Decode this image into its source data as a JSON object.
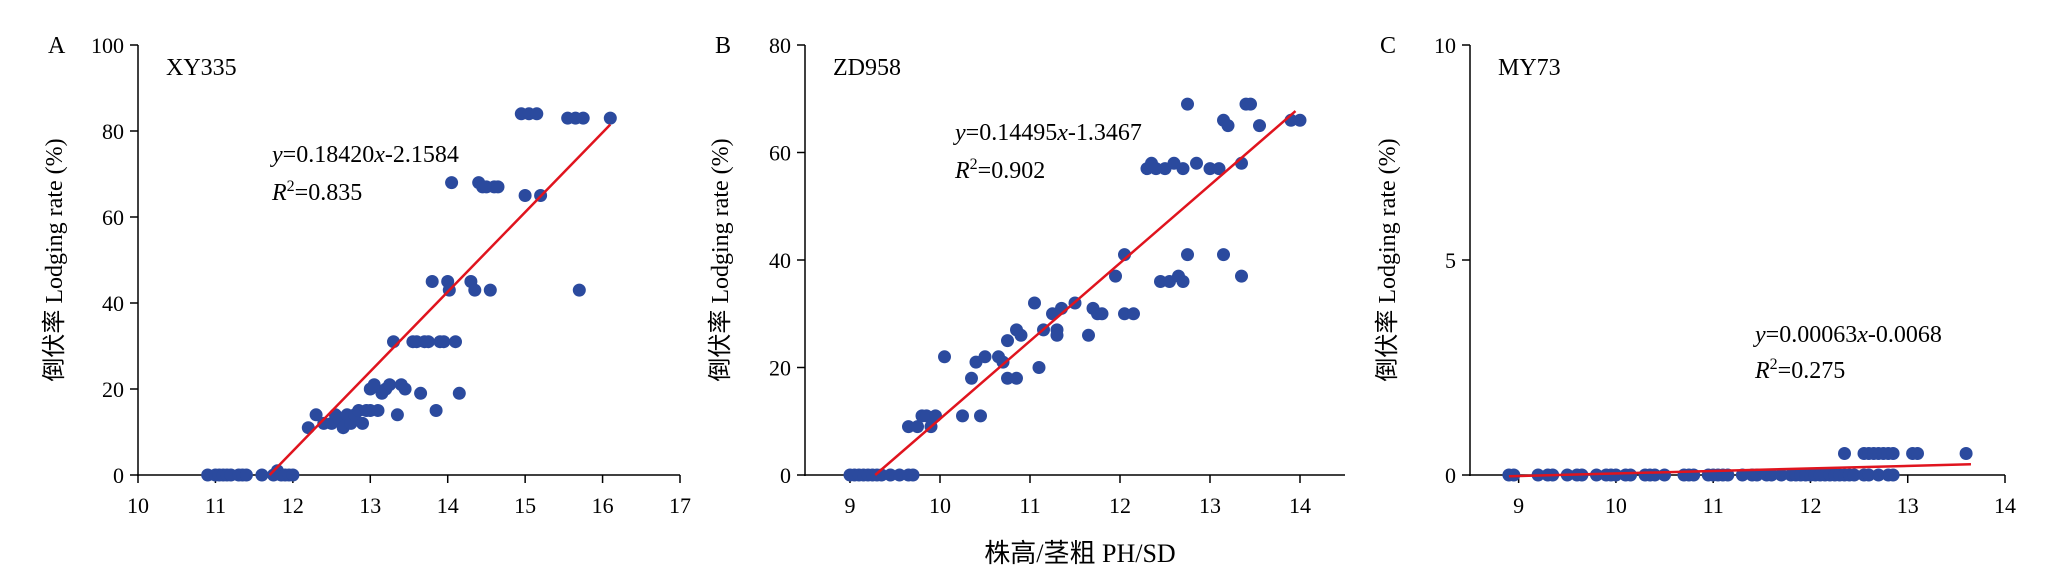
{
  "figure": {
    "common_xlabel": "株高/茎粗 PH/SD"
  },
  "chart_data": [
    {
      "type": "scatter",
      "panel_label": "A",
      "series_name": "XY335",
      "xlabel": "株高/茎粗 PH/SD",
      "ylabel": "倒伏率 Lodging rate (%)",
      "xlim": [
        10,
        17
      ],
      "ylim": [
        0,
        100
      ],
      "xticks": [
        "10",
        "11",
        "12",
        "13",
        "14",
        "15",
        "16",
        "17"
      ],
      "yticks": [
        "0",
        "20",
        "40",
        "60",
        "80",
        "100"
      ],
      "equation": "y=0.18420x-2.1584",
      "r2": "R2=0.835",
      "eq_y": "y",
      "eq_rest1": "=0.18420",
      "eq_x": "x",
      "eq_rest2": "-2.1584",
      "r2_R": "R",
      "r2_sup": "2",
      "r2_val": "=0.835",
      "fit_line": {
        "x": [
          11.7,
          16.1
        ],
        "y": [
          0,
          81.5
        ]
      },
      "points": [
        [
          10.9,
          0
        ],
        [
          11.0,
          0
        ],
        [
          11.05,
          0
        ],
        [
          11.1,
          0
        ],
        [
          11.15,
          0
        ],
        [
          11.2,
          0
        ],
        [
          11.3,
          0
        ],
        [
          11.35,
          0
        ],
        [
          11.4,
          0
        ],
        [
          11.6,
          0
        ],
        [
          11.75,
          0
        ],
        [
          11.8,
          1
        ],
        [
          11.85,
          0
        ],
        [
          11.9,
          0
        ],
        [
          11.95,
          0
        ],
        [
          12.0,
          0
        ],
        [
          12.2,
          11
        ],
        [
          12.3,
          14
        ],
        [
          12.4,
          12
        ],
        [
          12.5,
          12
        ],
        [
          12.55,
          14
        ],
        [
          12.6,
          13
        ],
        [
          12.65,
          11
        ],
        [
          12.7,
          14
        ],
        [
          12.75,
          12
        ],
        [
          12.8,
          14
        ],
        [
          12.85,
          15
        ],
        [
          12.9,
          12
        ],
        [
          12.95,
          15
        ],
        [
          13.0,
          15
        ],
        [
          13.0,
          20
        ],
        [
          13.05,
          21
        ],
        [
          13.1,
          15
        ],
        [
          13.15,
          19
        ],
        [
          13.2,
          20
        ],
        [
          13.25,
          21
        ],
        [
          13.3,
          31
        ],
        [
          13.35,
          14
        ],
        [
          13.4,
          21
        ],
        [
          13.45,
          20
        ],
        [
          13.55,
          31
        ],
        [
          13.6,
          31
        ],
        [
          13.65,
          19
        ],
        [
          13.7,
          31
        ],
        [
          13.75,
          31
        ],
        [
          13.8,
          45
        ],
        [
          13.85,
          15
        ],
        [
          13.9,
          31
        ],
        [
          13.95,
          31
        ],
        [
          14.0,
          45
        ],
        [
          14.02,
          43
        ],
        [
          14.05,
          68
        ],
        [
          14.1,
          31
        ],
        [
          14.15,
          19
        ],
        [
          14.3,
          45
        ],
        [
          14.35,
          43
        ],
        [
          14.4,
          68
        ],
        [
          14.45,
          67
        ],
        [
          14.5,
          67
        ],
        [
          14.55,
          43
        ],
        [
          14.6,
          67
        ],
        [
          14.65,
          67
        ],
        [
          14.95,
          84
        ],
        [
          15.0,
          65
        ],
        [
          15.05,
          84
        ],
        [
          15.15,
          84
        ],
        [
          15.2,
          65
        ],
        [
          15.55,
          83
        ],
        [
          15.65,
          83
        ],
        [
          15.7,
          43
        ],
        [
          15.75,
          83
        ],
        [
          16.1,
          83
        ]
      ]
    },
    {
      "type": "scatter",
      "panel_label": "B",
      "series_name": "ZD958",
      "xlabel": "株高/茎粗 PH/SD",
      "ylabel": "倒伏率 Lodging rate (%)",
      "xlim": [
        8.5,
        14.5
      ],
      "ylim": [
        0,
        80
      ],
      "xticks": [
        "9",
        "10",
        "11",
        "12",
        "13",
        "14"
      ],
      "yticks": [
        "0",
        "20",
        "40",
        "60",
        "80"
      ],
      "equation": "y=0.14495x-1.3467",
      "r2": "R2=0.902",
      "eq_y": "y",
      "eq_rest1": "=0.14495",
      "eq_x": "x",
      "eq_rest2": "-1.3467",
      "r2_R": "R",
      "r2_sup": "2",
      "r2_val": "=0.902",
      "fit_line": {
        "x": [
          9.28,
          13.95
        ],
        "y": [
          0,
          67.7
        ]
      },
      "points": [
        [
          9.0,
          0
        ],
        [
          9.05,
          0
        ],
        [
          9.1,
          0
        ],
        [
          9.15,
          0
        ],
        [
          9.2,
          0
        ],
        [
          9.25,
          0
        ],
        [
          9.3,
          0
        ],
        [
          9.35,
          0
        ],
        [
          9.45,
          0
        ],
        [
          9.55,
          0
        ],
        [
          9.65,
          0
        ],
        [
          9.7,
          0
        ],
        [
          9.65,
          9
        ],
        [
          9.75,
          9
        ],
        [
          9.8,
          11
        ],
        [
          9.85,
          11
        ],
        [
          9.9,
          9
        ],
        [
          9.95,
          11
        ],
        [
          10.05,
          22
        ],
        [
          10.25,
          11
        ],
        [
          10.35,
          18
        ],
        [
          10.4,
          21
        ],
        [
          10.45,
          11
        ],
        [
          10.5,
          22
        ],
        [
          10.65,
          22
        ],
        [
          10.7,
          21
        ],
        [
          10.75,
          25
        ],
        [
          10.75,
          18
        ],
        [
          10.85,
          18
        ],
        [
          10.85,
          27
        ],
        [
          10.9,
          26
        ],
        [
          11.05,
          32
        ],
        [
          11.1,
          20
        ],
        [
          11.15,
          27
        ],
        [
          11.25,
          30
        ],
        [
          11.3,
          27
        ],
        [
          11.3,
          26
        ],
        [
          11.35,
          31
        ],
        [
          11.5,
          32
        ],
        [
          11.65,
          26
        ],
        [
          11.7,
          31
        ],
        [
          11.75,
          30
        ],
        [
          11.8,
          30
        ],
        [
          11.95,
          37
        ],
        [
          12.05,
          41
        ],
        [
          12.05,
          30
        ],
        [
          12.15,
          30
        ],
        [
          12.3,
          57
        ],
        [
          12.35,
          58
        ],
        [
          12.4,
          57
        ],
        [
          12.45,
          36
        ],
        [
          12.5,
          57
        ],
        [
          12.55,
          36
        ],
        [
          12.6,
          58
        ],
        [
          12.65,
          37
        ],
        [
          12.7,
          57
        ],
        [
          12.7,
          36
        ],
        [
          12.75,
          69
        ],
        [
          12.75,
          41
        ],
        [
          12.85,
          58
        ],
        [
          13.0,
          57
        ],
        [
          13.1,
          57
        ],
        [
          13.15,
          66
        ],
        [
          13.15,
          41
        ],
        [
          13.2,
          65
        ],
        [
          13.35,
          58
        ],
        [
          13.35,
          37
        ],
        [
          13.4,
          69
        ],
        [
          13.45,
          69
        ],
        [
          13.55,
          65
        ],
        [
          13.9,
          66
        ],
        [
          14.0,
          66
        ]
      ]
    },
    {
      "type": "scatter",
      "panel_label": "C",
      "series_name": "MY73",
      "xlabel": "株高/茎粗 PH/SD",
      "ylabel": "倒伏率 Lodging rate (%)",
      "xlim": [
        8.5,
        14
      ],
      "ylim": [
        0,
        10
      ],
      "xticks": [
        "9",
        "10",
        "11",
        "12",
        "13",
        "14"
      ],
      "yticks": [
        "0",
        "5",
        "10"
      ],
      "equation": "y=0.00063x-0.0068",
      "r2": "R2=0.275",
      "eq_y": "y",
      "eq_rest1": "=0.00063",
      "eq_x": "x",
      "eq_rest2": "-0.0068",
      "r2_R": "R",
      "r2_sup": "2",
      "r2_val": "=0.275",
      "fit_line": {
        "x": [
          8.9,
          13.65
        ],
        "y": [
          -0.03,
          0.25
        ]
      },
      "points": [
        [
          8.9,
          0
        ],
        [
          8.95,
          0
        ],
        [
          9.2,
          0
        ],
        [
          9.3,
          0
        ],
        [
          9.35,
          0
        ],
        [
          9.5,
          0
        ],
        [
          9.6,
          0
        ],
        [
          9.65,
          0
        ],
        [
          9.8,
          0
        ],
        [
          9.9,
          0
        ],
        [
          9.95,
          0
        ],
        [
          10.0,
          0
        ],
        [
          10.1,
          0
        ],
        [
          10.15,
          0
        ],
        [
          10.3,
          0
        ],
        [
          10.35,
          0
        ],
        [
          10.4,
          0
        ],
        [
          10.5,
          0
        ],
        [
          10.7,
          0
        ],
        [
          10.75,
          0
        ],
        [
          10.8,
          0
        ],
        [
          10.95,
          0
        ],
        [
          11.0,
          0
        ],
        [
          11.05,
          0
        ],
        [
          11.1,
          0
        ],
        [
          11.15,
          0
        ],
        [
          11.3,
          0
        ],
        [
          11.4,
          0
        ],
        [
          11.45,
          0
        ],
        [
          11.55,
          0
        ],
        [
          11.6,
          0
        ],
        [
          11.7,
          0
        ],
        [
          11.8,
          0
        ],
        [
          11.85,
          0
        ],
        [
          11.9,
          0
        ],
        [
          11.95,
          0
        ],
        [
          12.0,
          0
        ],
        [
          12.05,
          0
        ],
        [
          12.1,
          0
        ],
        [
          12.15,
          0
        ],
        [
          12.2,
          0
        ],
        [
          12.25,
          0
        ],
        [
          12.3,
          0
        ],
        [
          12.35,
          0
        ],
        [
          12.4,
          0
        ],
        [
          12.45,
          0
        ],
        [
          12.55,
          0
        ],
        [
          12.6,
          0
        ],
        [
          12.7,
          0
        ],
        [
          12.8,
          0
        ],
        [
          12.85,
          0
        ],
        [
          12.35,
          0.5
        ],
        [
          12.55,
          0.5
        ],
        [
          12.6,
          0.5
        ],
        [
          12.65,
          0.5
        ],
        [
          12.7,
          0.5
        ],
        [
          12.75,
          0.5
        ],
        [
          12.8,
          0.5
        ],
        [
          12.85,
          0.5
        ],
        [
          13.05,
          0.5
        ],
        [
          13.1,
          0.5
        ],
        [
          13.6,
          0.5
        ]
      ]
    }
  ]
}
